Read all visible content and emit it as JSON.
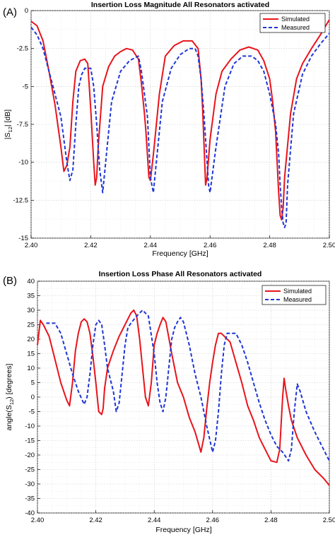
{
  "chart_data": [
    {
      "panel_label": "(A)",
      "type": "line",
      "title": "Insertion Loss Magnitude All Resonators activated",
      "xlabel": "Frequency [GHz]",
      "ylabel_parts": [
        "|S",
        "12",
        "| [dB]"
      ],
      "xlim": [
        2.4,
        2.5
      ],
      "ylim": [
        -15,
        0
      ],
      "xticks": [
        2.4,
        2.42,
        2.44,
        2.46,
        2.48,
        2.5
      ],
      "xtick_labels": [
        "2.40",
        "2.42",
        "2.44",
        "2.46",
        "2.48",
        "2.50"
      ],
      "yticks": [
        0,
        -2.5,
        -5,
        -7.5,
        -10,
        -12.5,
        -15
      ],
      "ytick_labels": [
        "0",
        "-2.5",
        "-5",
        "-7.5",
        "-10",
        "-12.5",
        "-15"
      ],
      "grid": true,
      "legend_position": "top-right",
      "series": [
        {
          "name": "Simulated",
          "color": "#e8141c",
          "style": "solid",
          "x": [
            2.4,
            2.402,
            2.404,
            2.406,
            2.408,
            2.41,
            2.411,
            2.412,
            2.413,
            2.414,
            2.415,
            2.4165,
            2.418,
            2.419,
            2.42,
            2.421,
            2.4215,
            2.422,
            2.4225,
            2.424,
            2.426,
            2.428,
            2.43,
            2.432,
            2.434,
            2.436,
            2.437,
            2.438,
            2.4385,
            2.439,
            2.4395,
            2.44,
            2.441,
            2.443,
            2.445,
            2.448,
            2.451,
            2.454,
            2.456,
            2.457,
            2.4575,
            2.458,
            2.4585,
            2.459,
            2.46,
            2.462,
            2.464,
            2.467,
            2.47,
            2.473,
            2.476,
            2.478,
            2.48,
            2.481,
            2.482,
            2.4825,
            2.483,
            2.4835,
            2.484,
            2.4845,
            2.485,
            2.487,
            2.489,
            2.491,
            2.494,
            2.497,
            2.5
          ],
          "y": [
            -0.7,
            -1.0,
            -2.0,
            -4.0,
            -6.2,
            -9.0,
            -10.6,
            -10.2,
            -9.0,
            -6.0,
            -4.0,
            -3.3,
            -3.2,
            -3.5,
            -6.5,
            -10.0,
            -11.5,
            -11.0,
            -9.0,
            -5.0,
            -3.7,
            -3.0,
            -2.7,
            -2.5,
            -2.6,
            -3.2,
            -4.8,
            -6.8,
            -8.0,
            -9.5,
            -11.0,
            -11.2,
            -9.5,
            -5.5,
            -3.0,
            -2.3,
            -2.0,
            -2.0,
            -2.5,
            -4.5,
            -6.5,
            -9.0,
            -11.5,
            -11.0,
            -8.5,
            -5.5,
            -4.0,
            -3.2,
            -2.6,
            -2.4,
            -2.6,
            -3.3,
            -4.5,
            -6.0,
            -8.0,
            -10.0,
            -12.0,
            -13.5,
            -13.8,
            -13.0,
            -11.0,
            -6.8,
            -4.5,
            -3.5,
            -2.5,
            -1.6,
            -0.6
          ]
        },
        {
          "name": "Measured",
          "color": "#1f36d6",
          "style": "dashed",
          "x": [
            2.4,
            2.402,
            2.404,
            2.406,
            2.408,
            2.41,
            2.412,
            2.413,
            2.414,
            2.4145,
            2.415,
            2.416,
            2.417,
            2.418,
            2.42,
            2.421,
            2.422,
            2.423,
            2.424,
            2.425,
            2.427,
            2.43,
            2.433,
            2.436,
            2.437,
            2.438,
            2.439,
            2.4395,
            2.44,
            2.441,
            2.442,
            2.444,
            2.447,
            2.45,
            2.453,
            2.455,
            2.456,
            2.457,
            2.458,
            2.459,
            2.4595,
            2.46,
            2.462,
            2.465,
            2.468,
            2.471,
            2.474,
            2.476,
            2.478,
            2.48,
            2.482,
            2.483,
            2.4835,
            2.484,
            2.4845,
            2.485,
            2.4855,
            2.486,
            2.488,
            2.491,
            2.494,
            2.497,
            2.5
          ],
          "y": [
            -1.1,
            -1.6,
            -2.5,
            -4.0,
            -5.5,
            -7.0,
            -10.0,
            -11.2,
            -10.5,
            -9.0,
            -7.5,
            -5.0,
            -4.2,
            -3.8,
            -3.8,
            -5.0,
            -7.5,
            -10.5,
            -12.0,
            -10.0,
            -6.0,
            -4.0,
            -3.3,
            -3.0,
            -4.0,
            -5.5,
            -7.0,
            -9.0,
            -11.0,
            -12.0,
            -10.0,
            -6.0,
            -3.8,
            -2.9,
            -2.5,
            -2.5,
            -3.0,
            -4.5,
            -7.0,
            -10.0,
            -11.5,
            -12.0,
            -9.0,
            -5.0,
            -3.5,
            -3.0,
            -3.0,
            -3.3,
            -4.0,
            -5.5,
            -7.5,
            -9.5,
            -11.5,
            -13.0,
            -14.0,
            -14.3,
            -14.0,
            -11.5,
            -6.8,
            -4.2,
            -3.0,
            -2.2,
            -1.5
          ]
        }
      ]
    },
    {
      "panel_label": "(B)",
      "type": "line",
      "title": "Insertion Loss Phase All Resonators activated",
      "xlabel": "Frequency [GHz]",
      "ylabel_parts": [
        "angle(S",
        "12",
        ") [degrees]"
      ],
      "xlim": [
        2.4,
        2.5
      ],
      "ylim": [
        -40,
        40
      ],
      "xticks": [
        2.4,
        2.42,
        2.44,
        2.46,
        2.48,
        2.5
      ],
      "xtick_labels": [
        "2.40",
        "2.42",
        "2.44",
        "2.46",
        "2.48",
        "2.50"
      ],
      "yticks": [
        40,
        35,
        30,
        25,
        20,
        15,
        10,
        5,
        0,
        -5,
        -10,
        -15,
        -20,
        -25,
        -30,
        -35,
        -40
      ],
      "ytick_labels": [
        "40",
        "35",
        "30",
        "25",
        "20",
        "15",
        "10",
        "5",
        "0",
        "-5",
        "-10",
        "-15",
        "-20",
        "-25",
        "-30",
        "-35",
        "-40"
      ],
      "grid": true,
      "legend_position": "top-right",
      "series": [
        {
          "name": "Simulated",
          "color": "#e8141c",
          "style": "solid",
          "x": [
            2.4,
            2.401,
            2.402,
            2.404,
            2.406,
            2.408,
            2.41,
            2.411,
            2.412,
            2.413,
            2.414,
            2.415,
            2.416,
            2.417,
            2.418,
            2.419,
            2.42,
            2.421,
            2.422,
            2.4225,
            2.423,
            2.424,
            2.426,
            2.428,
            2.43,
            2.432,
            2.433,
            2.434,
            2.435,
            2.436,
            2.437,
            2.438,
            2.439,
            2.44,
            2.441,
            2.442,
            2.443,
            2.444,
            2.446,
            2.448,
            2.45,
            2.452,
            2.454,
            2.456,
            2.457,
            2.458,
            2.459,
            2.46,
            2.461,
            2.462,
            2.463,
            2.466,
            2.468,
            2.47,
            2.472,
            2.474,
            2.476,
            2.478,
            2.48,
            2.482,
            2.483,
            2.484,
            2.4845,
            2.485,
            2.486,
            2.487,
            2.489,
            2.492,
            2.495,
            2.498,
            2.5
          ],
          "y": [
            18,
            26.5,
            25,
            21,
            13,
            5,
            -1,
            -3,
            5,
            16,
            22,
            26,
            27,
            26,
            22,
            14,
            5,
            -5,
            -6,
            -4,
            3,
            10,
            16,
            21,
            25,
            29,
            30,
            28,
            20,
            10,
            0,
            -3,
            5,
            18,
            22,
            25,
            27.5,
            26,
            15,
            5,
            0,
            -7,
            -12,
            -19,
            -14,
            -4,
            5,
            12,
            18,
            22,
            22,
            19,
            12,
            5,
            -3,
            -8,
            -14,
            -18,
            -22,
            -22.5,
            -18,
            0,
            6.5,
            3,
            -3,
            -8,
            -14,
            -20,
            -25,
            -28,
            -30.5
          ]
        },
        {
          "name": "Measured",
          "color": "#1f36d6",
          "style": "dashed",
          "x": [
            2.403,
            2.406,
            2.408,
            2.41,
            2.412,
            2.414,
            2.416,
            2.417,
            2.418,
            2.419,
            2.42,
            2.421,
            2.422,
            2.423,
            2.424,
            2.426,
            2.427,
            2.428,
            2.429,
            2.43,
            2.431,
            2.432,
            2.434,
            2.436,
            2.438,
            2.44,
            2.441,
            2.442,
            2.443,
            2.444,
            2.445,
            2.446,
            2.447,
            2.448,
            2.449,
            2.45,
            2.452,
            2.454,
            2.456,
            2.458,
            2.46,
            2.461,
            2.462,
            2.463,
            2.464,
            2.465,
            2.468,
            2.47,
            2.472,
            2.474,
            2.476,
            2.478,
            2.48,
            2.482,
            2.484,
            2.486,
            2.487,
            2.488,
            2.489,
            2.49,
            2.492,
            2.495,
            2.498,
            2.5
          ],
          "y": [
            25.5,
            25.5,
            22,
            15,
            8,
            2,
            -2.5,
            0,
            8,
            18,
            25,
            26.5,
            25,
            18,
            10,
            2,
            -5,
            -2,
            8,
            18,
            24,
            25.5,
            28,
            30,
            28,
            15,
            5,
            -2,
            -5,
            0,
            10,
            20,
            24,
            26,
            27.5,
            26,
            18,
            8,
            0,
            -10,
            -19,
            -15,
            -5,
            8,
            18,
            22,
            22,
            18,
            12,
            5,
            -2,
            -8,
            -13,
            -17,
            -19,
            -22,
            -18,
            -5,
            4.5,
            2,
            -5,
            -12,
            -18,
            -22
          ]
        }
      ]
    }
  ]
}
